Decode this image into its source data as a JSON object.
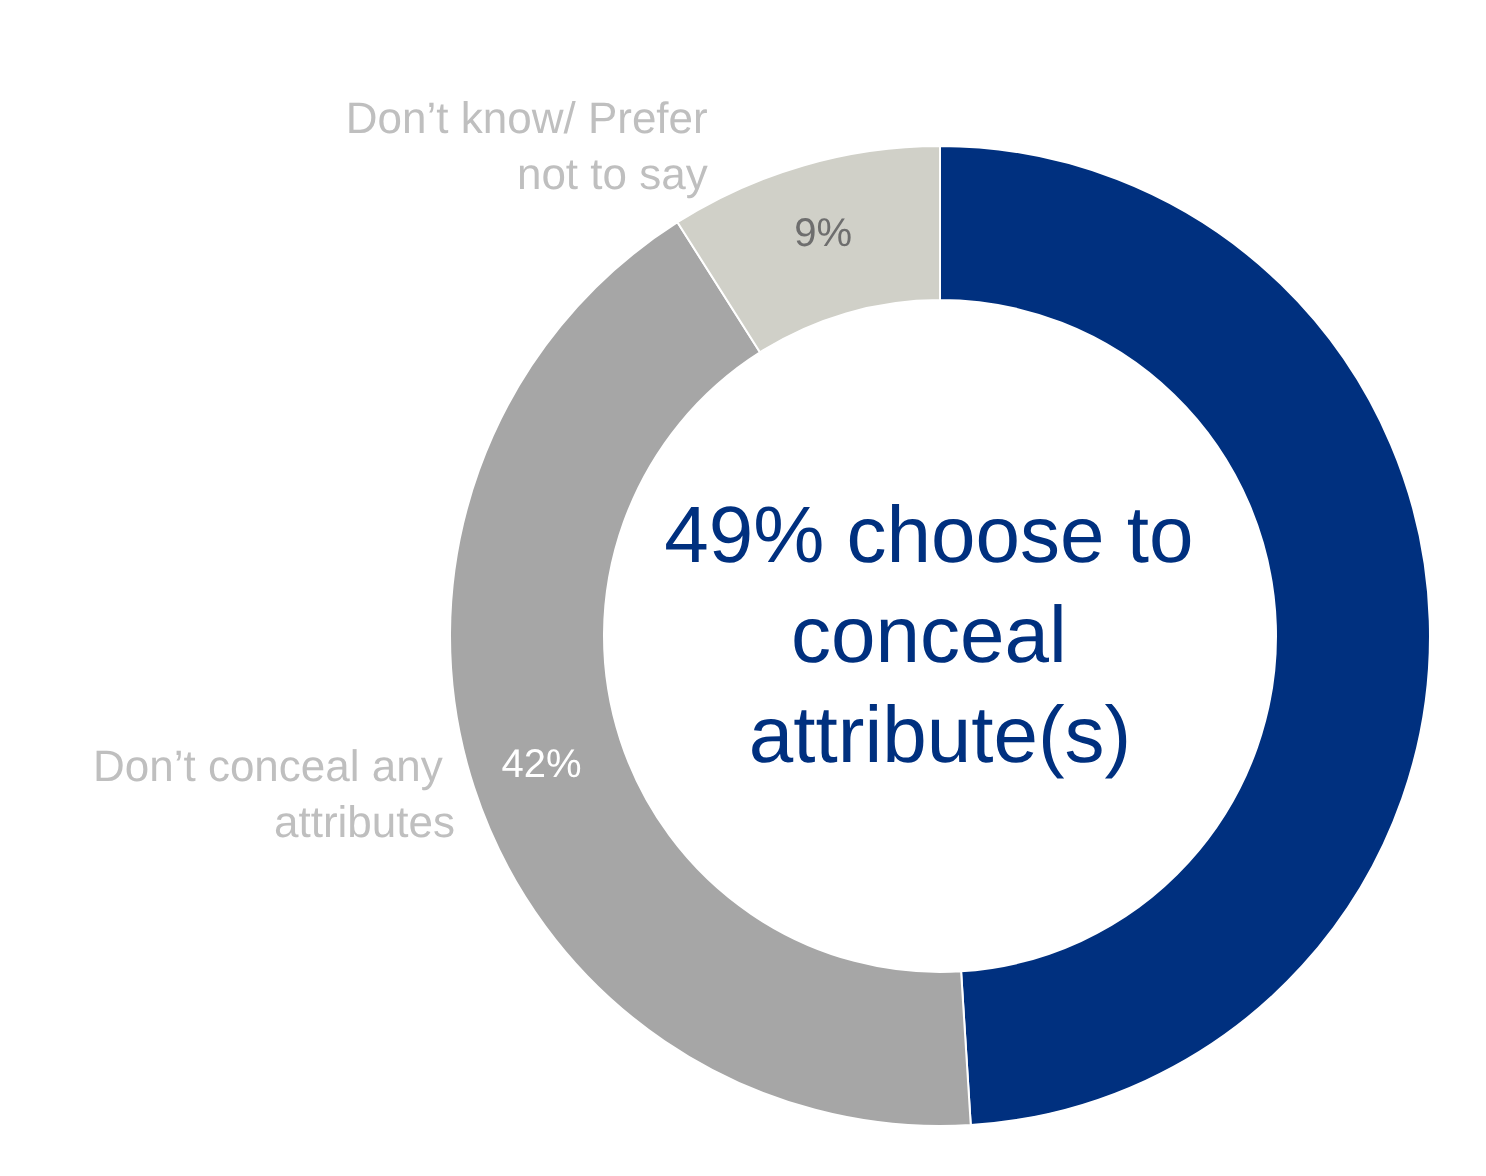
{
  "chart_data": {
    "type": "donut",
    "categories": [
      null,
      "Don’t conceal any attributes",
      "Don’t know/ Prefer not to say"
    ],
    "values": [
      49,
      42,
      9
    ],
    "colors": [
      "#00307f",
      "#a6a6a6",
      "#d0d0c8"
    ],
    "value_labels": [
      null,
      "42%",
      "9%"
    ],
    "annotations": [
      "49% choose to conceal attribute(s)"
    ]
  }
}
